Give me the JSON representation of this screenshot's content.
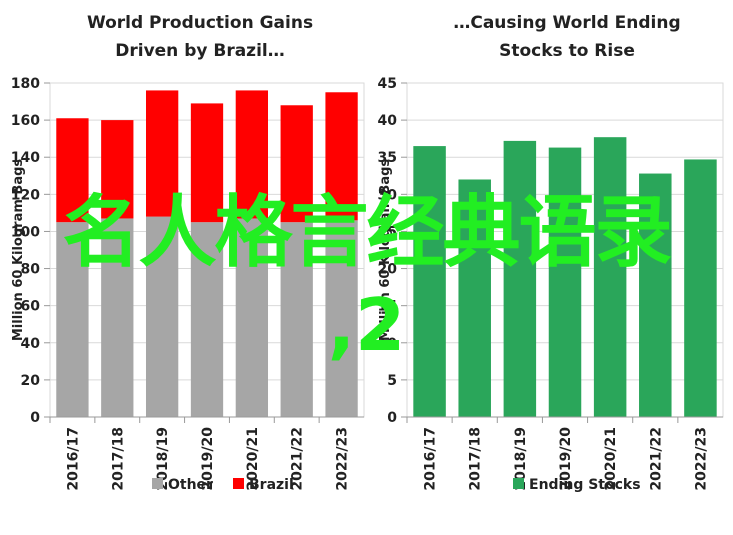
{
  "chart_data": [
    {
      "type": "bar",
      "stacked": true,
      "title_lines": [
        "World Production Gains",
        "Driven by Brazil…"
      ],
      "ylabel": "Million 60 Kilogram Bags",
      "ylim": [
        0,
        180
      ],
      "ytick_labels": [
        "0",
        "20",
        "40",
        "60",
        "80",
        "100",
        "120",
        "140",
        "160",
        "180"
      ],
      "categories": [
        "2016/17",
        "2017/18",
        "2018/19",
        "2019/20",
        "2020/21",
        "2021/22",
        "2022/23"
      ],
      "series": [
        {
          "name": "Other",
          "color": "#a6a6a6",
          "values": [
            105,
            107,
            108,
            105,
            107,
            105,
            106
          ]
        },
        {
          "name": "Brazil",
          "color": "#ff0000",
          "values": [
            56,
            53,
            68,
            64,
            69,
            63,
            69
          ]
        }
      ],
      "grid": true,
      "legend_position": "bottom"
    },
    {
      "type": "bar",
      "title_lines": [
        "…Causing World Ending",
        "Stocks to Rise"
      ],
      "ylabel": "Million 60 Kilogram Bags",
      "ylim": [
        0,
        45
      ],
      "ytick_labels": [
        "0",
        "5",
        "10",
        "15",
        "20",
        "25",
        "30",
        "35",
        "40",
        "45"
      ],
      "categories": [
        "2016/17",
        "2017/18",
        "2018/19",
        "2019/20",
        "2020/21",
        "2021/22",
        "2022/23"
      ],
      "series": [
        {
          "name": "Ending Stocks",
          "color": "#2aa65a",
          "values": [
            36.5,
            32,
            37.2,
            36.3,
            37.7,
            32.8,
            34.7
          ]
        }
      ],
      "grid": true,
      "legend_position": "bottom"
    }
  ],
  "overlay": {
    "line1": "名人格言经典语录",
    "line2": ",2",
    "color": "#22ee22"
  }
}
